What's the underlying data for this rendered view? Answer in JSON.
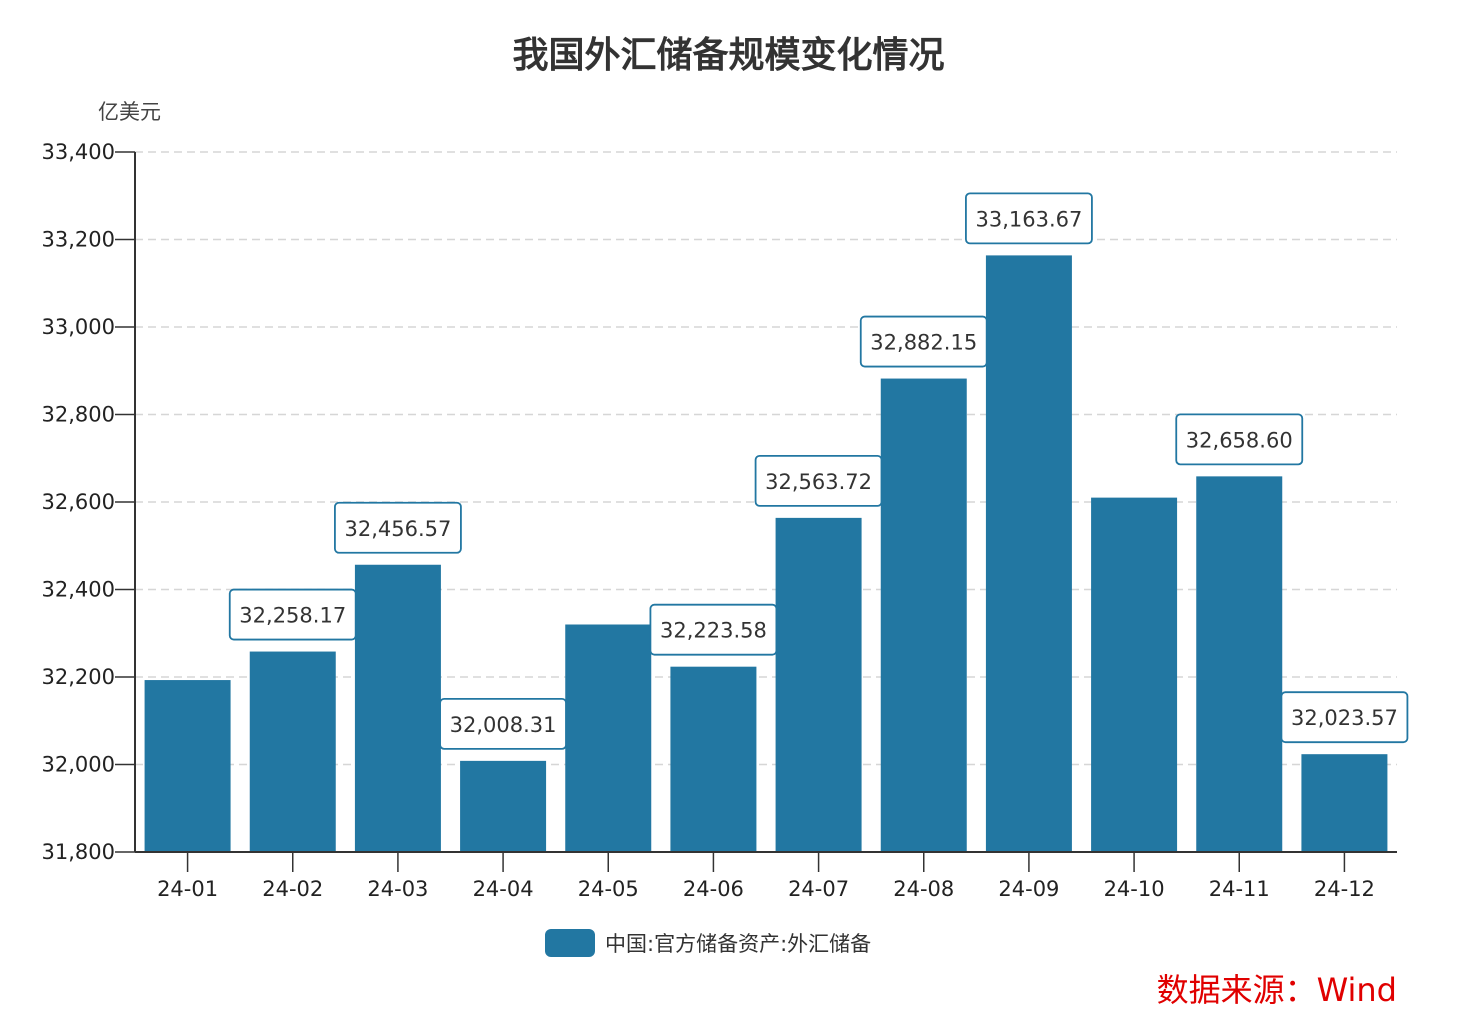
{
  "chart_data": {
    "type": "bar",
    "title": "我国外汇储备规模变化情况",
    "ylabel": "亿美元",
    "xlabel": "",
    "categories": [
      "24-01",
      "24-02",
      "24-03",
      "24-04",
      "24-05",
      "24-06",
      "24-07",
      "24-08",
      "24-09",
      "24-10",
      "24-11",
      "24-12"
    ],
    "series": [
      {
        "name": "中国:官方储备资产:外汇储备",
        "values": [
          32193,
          32258.17,
          32456.57,
          32008.31,
          32320,
          32223.58,
          32563.72,
          32882.15,
          33163.67,
          32610,
          32658.6,
          32023.57
        ],
        "data_labels": [
          null,
          "32,258.17",
          "32,456.57",
          "32,008.31",
          null,
          "32,223.58",
          "32,563.72",
          "32,882.15",
          "33,163.67",
          null,
          "32,658.60",
          "32,023.57"
        ],
        "color": "#2277a2"
      }
    ],
    "ylim": [
      31800,
      33400
    ],
    "yticks": [
      "31,800",
      "32,000",
      "32,200",
      "32,400",
      "32,600",
      "32,800",
      "33,000",
      "33,200",
      "33,400"
    ],
    "ytick_values": [
      31800,
      32000,
      32200,
      32400,
      32600,
      32800,
      33000,
      33200,
      33400
    ],
    "grid": "horizontal dashed",
    "legend_position": "bottom"
  },
  "source": "数据来源：Wind"
}
